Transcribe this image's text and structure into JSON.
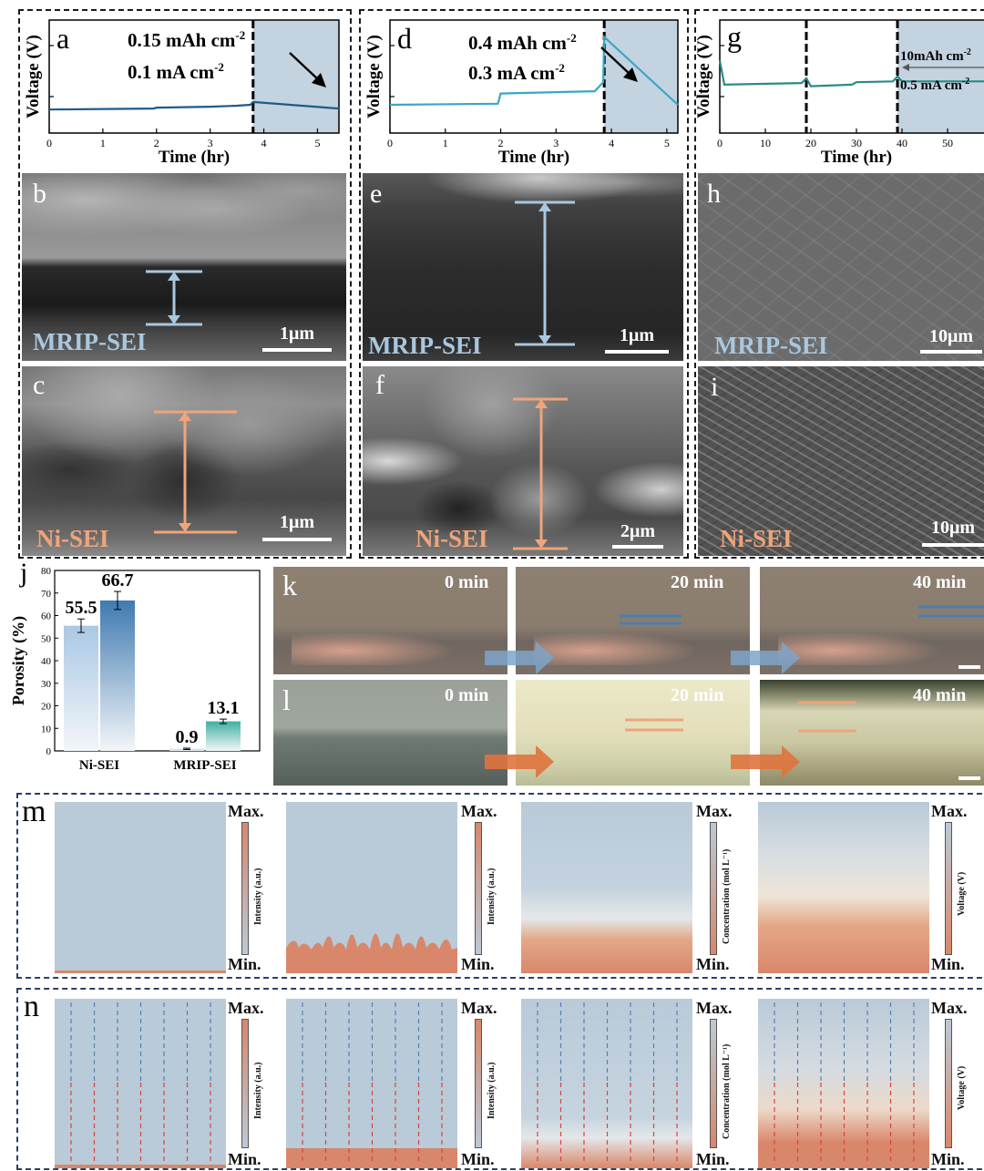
{
  "panels": {
    "a": {
      "letter": "a",
      "line1": "0.15 mAh cm",
      "sup1": "-2",
      "line2": "0.1 mA cm",
      "sup2": "-2"
    },
    "d": {
      "letter": "d",
      "line1": "0.4 mAh cm",
      "sup1": "-2",
      "line2": "0.3 mA cm",
      "sup2": "-2"
    },
    "g": {
      "letter": "g",
      "line1": "10mAh cm",
      "sup1": "-2",
      "line2": "0.5 mA cm",
      "sup2": "-2"
    },
    "b": {
      "letter": "b",
      "label": "MRIP-SEI",
      "scale": "1μm"
    },
    "c": {
      "letter": "c",
      "label": "Ni-SEI",
      "scale": "1μm"
    },
    "e": {
      "letter": "e",
      "label": "MRIP-SEI",
      "scale": "1μm"
    },
    "f": {
      "letter": "f",
      "label": "Ni-SEI",
      "scale": "2μm"
    },
    "h": {
      "letter": "h",
      "label": "MRIP-SEI",
      "scale": "10μm"
    },
    "i": {
      "letter": "i",
      "label": "Ni-SEI",
      "scale": "10μm"
    },
    "j": {
      "letter": "j"
    },
    "k": {
      "letter": "k",
      "times": [
        "0 min",
        "20 min",
        "40 min"
      ]
    },
    "l": {
      "letter": "l",
      "times": [
        "0 min",
        "20 min",
        "40 min"
      ]
    },
    "m": {
      "letter": "m"
    },
    "n": {
      "letter": "n"
    }
  },
  "voltage_axis": {
    "ylabel": "Voltage (V)",
    "xlabel": "Time (hr)"
  },
  "colorbars": {
    "max": "Max.",
    "min": "Min.",
    "intensity": "Intensity (a.u.)",
    "concentration": "Concentration (mol L⁻¹)",
    "voltage": "Voltage (V)"
  },
  "colors": {
    "navy": "#1d5a8a",
    "teal": "#3aa6c4",
    "green": "#2a8a86",
    "blue_pale": "#a9c7df",
    "orange": "#f0a47a",
    "field": "#b9cad8",
    "sim_orange": "#d9876a"
  },
  "chart_data": [
    {
      "type": "line",
      "panel": "a",
      "xlabel": "Time (hr)",
      "ylabel": "Voltage (V)",
      "xlim": [
        0,
        5.4
      ],
      "xticks": [
        0,
        1,
        2,
        3,
        4,
        5
      ],
      "cutoff_x": 3.8,
      "series": [
        {
          "x": [
            0,
            1.95,
            2.0,
            3.0,
            3.5,
            3.75,
            3.8,
            5.4
          ],
          "y": [
            0.25,
            0.26,
            0.27,
            0.28,
            0.29,
            0.3,
            0.33,
            0.26
          ]
        }
      ]
    },
    {
      "type": "line",
      "panel": "d",
      "xlabel": "Time (hr)",
      "ylabel": "Voltage (V)",
      "xlim": [
        0,
        5.2
      ],
      "xticks": [
        0,
        1,
        2,
        3,
        4,
        5
      ],
      "cutoff_x": 3.87,
      "series": [
        {
          "x": [
            0,
            1.95,
            2.0,
            3.7,
            3.85,
            3.87,
            5.2
          ],
          "y": [
            0.25,
            0.26,
            0.35,
            0.37,
            0.45,
            0.85,
            0.25
          ]
        }
      ]
    },
    {
      "type": "line",
      "panel": "g",
      "xlabel": "Time (hr)",
      "ylabel": "Voltage (V)",
      "xlim": [
        0,
        60
      ],
      "xticks": [
        0,
        10,
        20,
        30,
        40,
        50
      ],
      "cutoff_x": [
        19,
        39
      ],
      "series": [
        {
          "x": [
            0,
            1,
            18,
            19,
            20,
            29,
            30,
            38,
            39,
            40,
            60
          ],
          "y": [
            0.9,
            0.6,
            0.62,
            0.68,
            0.58,
            0.6,
            0.63,
            0.64,
            0.7,
            0.64,
            0.64
          ]
        }
      ]
    },
    {
      "type": "bar",
      "panel": "j",
      "title": "",
      "xlabel": "",
      "ylabel": "Porosity (%)",
      "ylim": [
        0,
        80
      ],
      "yticks": [
        0,
        10,
        20,
        30,
        40,
        50,
        60,
        70,
        80
      ],
      "categories": [
        "Ni-SEI",
        "MRIP-SEI"
      ],
      "series": [
        {
          "name": "",
          "values": [
            55.5,
            0.9
          ],
          "errors": [
            3,
            0.3
          ]
        },
        {
          "name": "",
          "values": [
            66.7,
            13.1
          ],
          "errors": [
            4,
            1
          ]
        }
      ],
      "value_labels": [
        "55.5",
        "66.7",
        "0.9",
        "13.1"
      ]
    }
  ]
}
